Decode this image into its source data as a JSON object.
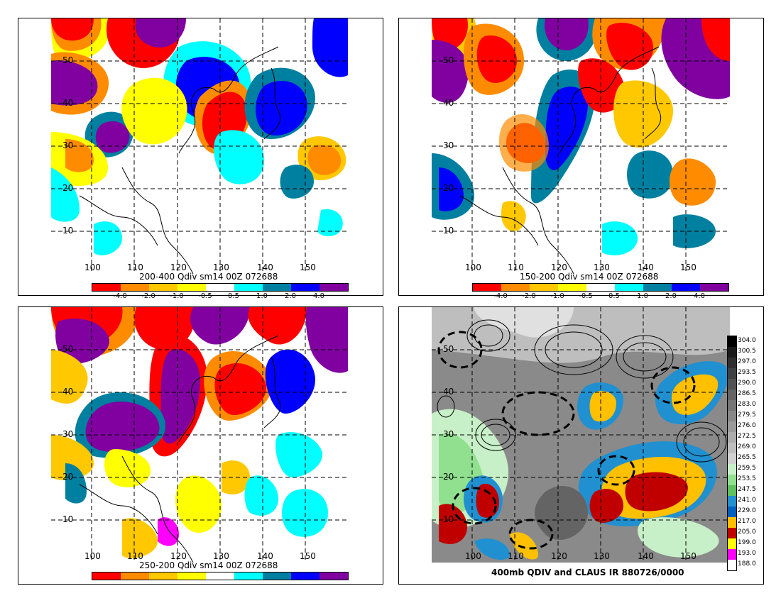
{
  "panels": [
    {
      "title": "200-400 Qdiv sm14 00Z 072688",
      "lon_labels": [
        "100",
        "110",
        "120",
        "130",
        "140",
        "150"
      ],
      "lat_labels": [
        "50",
        "40",
        "30",
        "20",
        "10"
      ]
    },
    {
      "title": "150-200 Qdiv sm14 00Z 072688",
      "lon_labels": [
        "100",
        "110",
        "120",
        "130",
        "140",
        "150"
      ],
      "lat_labels": [
        "50",
        "40",
        "30",
        "20",
        "10"
      ]
    },
    {
      "title": "250-200 Qdiv sm14 00Z 072688",
      "lon_labels": [
        "100",
        "110",
        "120",
        "130",
        "140",
        "150"
      ],
      "lat_labels": [
        "50",
        "40",
        "30",
        "20",
        "10"
      ]
    },
    {
      "title": "400mb QDIV and CLAUS IR 880726/0000",
      "lon_labels": [
        "100",
        "110",
        "120",
        "130",
        "140",
        "150"
      ],
      "lat_labels": [
        "50",
        "40",
        "30",
        "20",
        "10"
      ]
    }
  ],
  "qdiv_colorbar": {
    "colors": [
      "#ff0000",
      "#ff8c00",
      "#ffc800",
      "#ffff00",
      "#ffffff",
      "#00ffff",
      "#0080a0",
      "#0000ff",
      "#8000a0"
    ],
    "labels": [
      "-4.0",
      "-2.0",
      "-1.0",
      "-0.5",
      "0.5",
      "1.0",
      "2.0",
      "4.0"
    ]
  },
  "ir_colorbar": {
    "labels": [
      "304.0",
      "300.5",
      "297.0",
      "293.5",
      "290.0",
      "286.5",
      "283.0",
      "279.5",
      "276.0",
      "272.5",
      "269.0",
      "265.5",
      "259.5",
      "253.5",
      "247.5",
      "241.0",
      "229.0",
      "217.0",
      "205.0",
      "199.0",
      "193.0",
      "188.0"
    ],
    "colors": [
      "#000000",
      "#1a1a1a",
      "#2e2e2e",
      "#404040",
      "#525252",
      "#646464",
      "#767676",
      "#888888",
      "#9a9a9a",
      "#acacac",
      "#bebebe",
      "#d0d0d0",
      "#c8f0c8",
      "#90e090",
      "#60c060",
      "#2090d0",
      "#0060c0",
      "#ffc000",
      "#c00000",
      "#ffff00",
      "#ff00ff",
      "#ffffff"
    ]
  }
}
